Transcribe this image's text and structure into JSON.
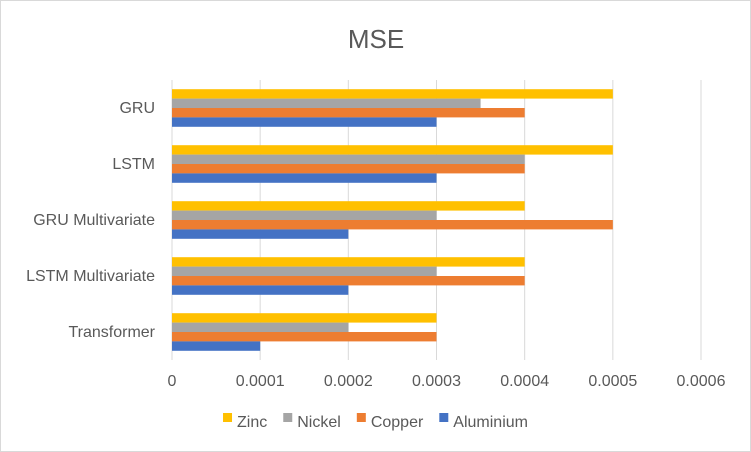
{
  "chart_data": {
    "type": "bar",
    "orientation": "horizontal",
    "title": "MSE",
    "xlabel": "",
    "ylabel": "",
    "categories": [
      "GRU",
      "LSTM",
      "GRU Multivariate",
      "LSTM Multivariate",
      "Transformer"
    ],
    "series": [
      {
        "name": "Zinc",
        "color": "#FFC000",
        "values": [
          0.0005,
          0.0005,
          0.0004,
          0.0004,
          0.0003
        ]
      },
      {
        "name": "Nickel",
        "color": "#A5A5A5",
        "values": [
          0.00035,
          0.0004,
          0.0003,
          0.0003,
          0.0002
        ]
      },
      {
        "name": "Copper",
        "color": "#ED7D31",
        "values": [
          0.0004,
          0.0004,
          0.0005,
          0.0004,
          0.0003
        ]
      },
      {
        "name": "Aluminium",
        "color": "#4472C4",
        "values": [
          0.0003,
          0.0003,
          0.0002,
          0.0002,
          0.0001
        ]
      }
    ],
    "xlim": [
      0,
      0.0006
    ],
    "ticks": [
      "0",
      "0.0001",
      "0.0002",
      "0.0003",
      "0.0004",
      "0.0005",
      "0.0006"
    ],
    "tick_values": [
      0,
      0.0001,
      0.0002,
      0.0003,
      0.0004,
      0.0005,
      0.0006
    ],
    "grid": true,
    "legend_position": "bottom"
  }
}
